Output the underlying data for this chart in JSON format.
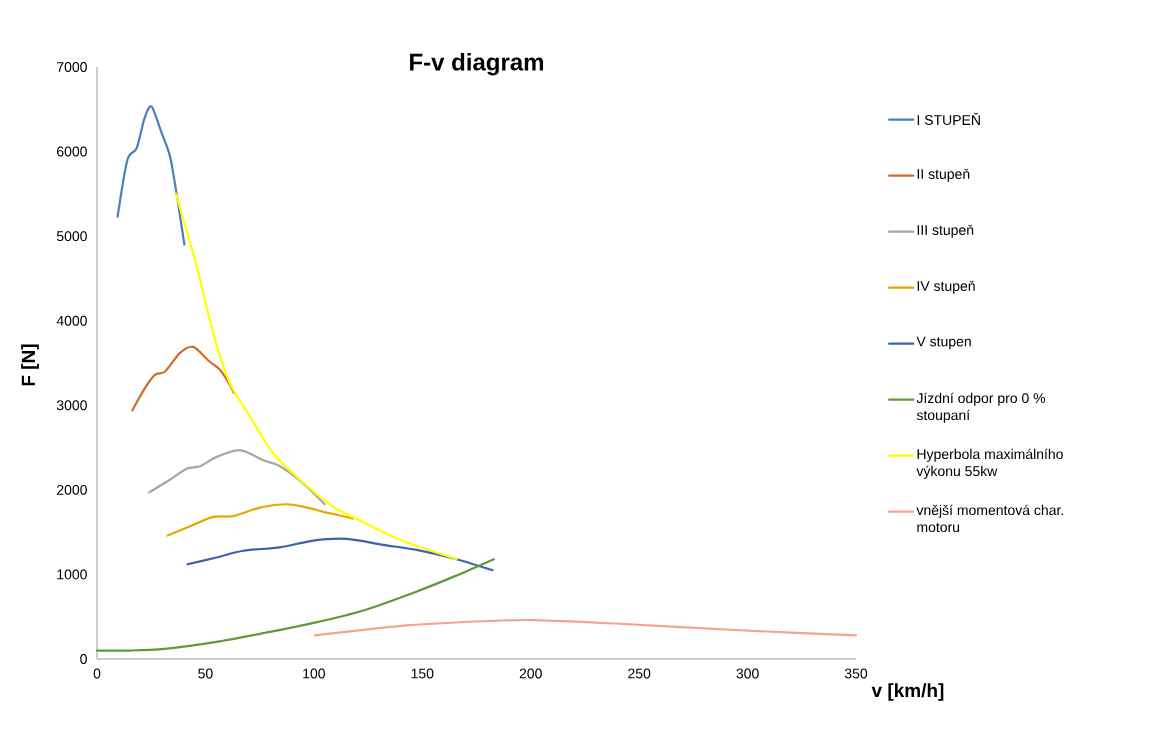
{
  "chart_data": {
    "type": "line",
    "title": "F-v diagram",
    "xlabel": "v [km/h]",
    "ylabel": "F [N]",
    "xlim": [
      0,
      350
    ],
    "ylim": [
      0,
      7000
    ],
    "xticks": [
      0,
      50,
      100,
      150,
      200,
      250,
      300,
      350
    ],
    "yticks": [
      0,
      1000,
      2000,
      3000,
      4000,
      5000,
      6000,
      7000
    ],
    "grid": false,
    "legend": "right",
    "marker": "none",
    "line_style": "solid",
    "series": [
      {
        "name": "I STUPEŇ",
        "color": "#4a7ebb",
        "x": [
          9.5,
          14,
          18.3,
          22,
          25.2,
          29.8,
          33.7,
          36.7,
          40.3
        ],
        "values": [
          5230,
          5900,
          6040,
          6400,
          6530,
          6220,
          5940,
          5500,
          4900
        ]
      },
      {
        "name": "II stupeň",
        "color": "#d46a28",
        "x": [
          16.3,
          22,
          26.7,
          31.4,
          38.3,
          44.4,
          51.3,
          56.7,
          61.3,
          63
        ],
        "values": [
          2940,
          3200,
          3360,
          3400,
          3620,
          3690,
          3530,
          3420,
          3240,
          3150
        ]
      },
      {
        "name": "III stupeň",
        "color": "#a5a5a5",
        "x": [
          24.1,
          33,
          41.3,
          47.5,
          55.2,
          65.9,
          76.7,
          84.4,
          95,
          105
        ],
        "values": [
          1970,
          2110,
          2250,
          2280,
          2390,
          2470,
          2350,
          2280,
          2080,
          1830
        ]
      },
      {
        "name": "IV stupeň",
        "color": "#e6a800",
        "x": [
          32.6,
          43,
          53.6,
          62.8,
          75.1,
          87.5,
          97,
          105.9,
          115.1,
          118
        ],
        "values": [
          1460,
          1570,
          1680,
          1690,
          1790,
          1830,
          1790,
          1730,
          1680,
          1660
        ]
      },
      {
        "name": "V stupen",
        "color": "#3b62ae",
        "x": [
          41.8,
          55,
          67.5,
          84.4,
          99.7,
          115.1,
          132,
          147.4,
          165.8,
          182.4
        ],
        "values": [
          1120,
          1200,
          1280,
          1320,
          1400,
          1420,
          1350,
          1290,
          1180,
          1050
        ]
      },
      {
        "name": "Jízdní odpor pro 0 % stoupaní",
        "color": "#5e9a35",
        "x": [
          0,
          15,
          31.3,
          54.4,
          77.5,
          100.5,
          123.6,
          146.6,
          165.1,
          183
        ],
        "values": [
          100,
          100,
          120,
          200,
          310,
          430,
          580,
          790,
          980,
          1180
        ]
      },
      {
        "name": "Hyperbola maximálního výkonu 55kw",
        "color": "#ffff00",
        "x": [
          36.4,
          46,
          53.6,
          61.3,
          70.5,
          81.3,
          93.6,
          108.9,
          124.3,
          139.7,
          165.8
        ],
        "values": [
          5500,
          4640,
          3850,
          3260,
          2870,
          2430,
          2120,
          1800,
          1600,
          1410,
          1180
        ]
      },
      {
        "name": "vnější momentová char. motoru",
        "color": "#f4a488",
        "x": [
          100.5,
          144.3,
          181.2,
          201.9,
          238.8,
          296.5,
          350
        ],
        "values": [
          280,
          400,
          450,
          460,
          420,
          340,
          280
        ]
      }
    ]
  }
}
